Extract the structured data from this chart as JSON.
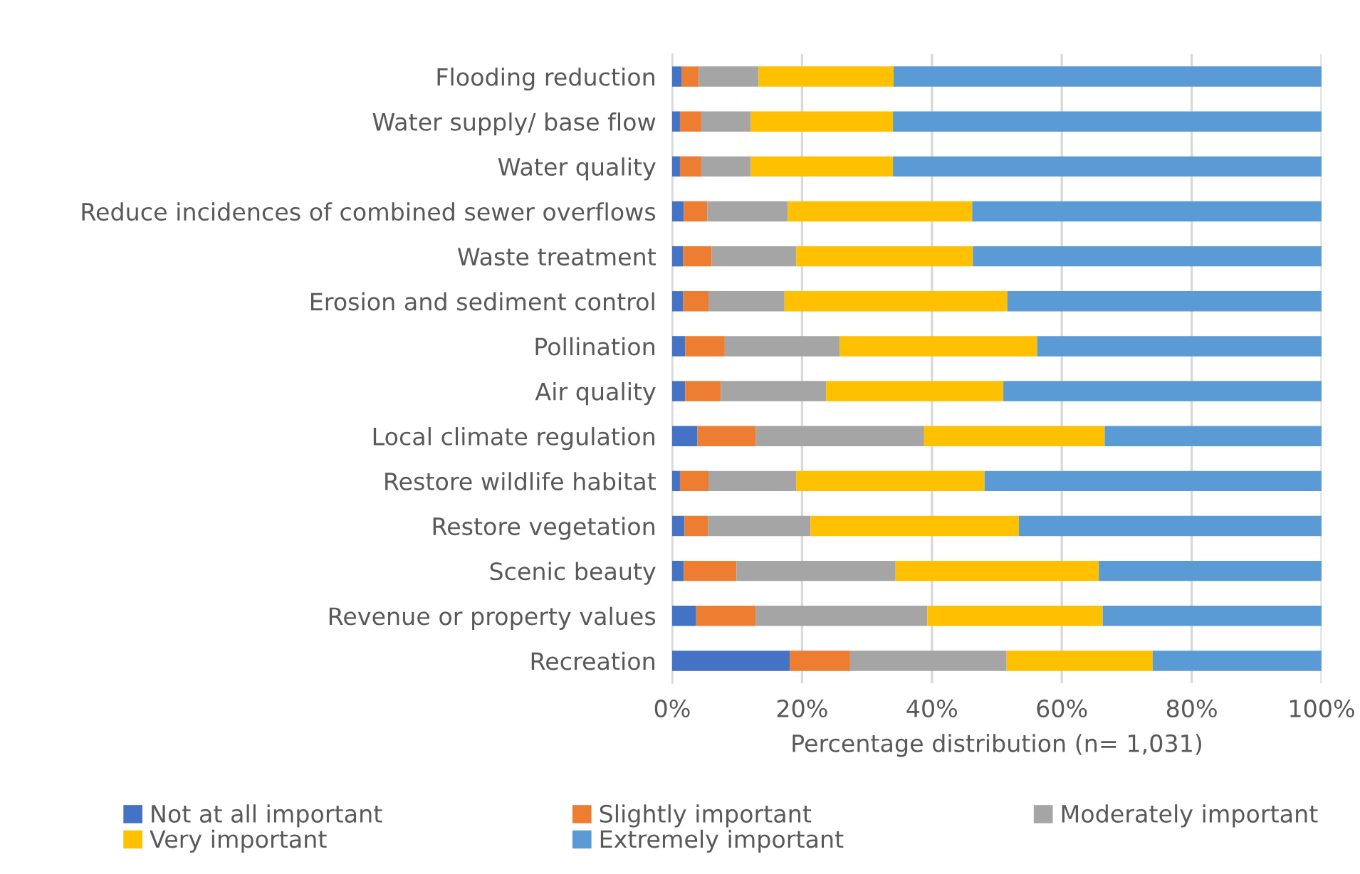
{
  "chart_data": {
    "type": "bar",
    "orientation": "horizontal",
    "stacked": true,
    "categories": [
      "Flooding reduction",
      "Water supply/ base flow",
      "Water quality",
      "Reduce incidences of combined sewer overflows",
      "Waste treatment",
      "Erosion and sediment control",
      "Pollination",
      "Air quality",
      "Local climate regulation",
      "Restore wildlife habitat",
      "Restore vegetation",
      "Scenic beauty",
      "Revenue or property values",
      "Recreation"
    ],
    "series": [
      {
        "name": "Not at all important",
        "color": "#4472c4",
        "values": [
          1.5,
          1.2,
          1.2,
          1.8,
          1.7,
          1.7,
          2.0,
          2.0,
          3.9,
          1.2,
          1.9,
          1.8,
          3.7,
          18.1
        ]
      },
      {
        "name": "Slightly important",
        "color": "#ed7d31",
        "values": [
          2.6,
          3.3,
          3.3,
          3.6,
          4.4,
          3.9,
          6.1,
          5.5,
          9.0,
          4.4,
          3.6,
          8.1,
          9.2,
          9.3
        ]
      },
      {
        "name": "Moderately important",
        "color": "#a5a5a5",
        "values": [
          9.2,
          7.6,
          7.6,
          12.4,
          13.0,
          11.7,
          17.7,
          16.2,
          25.9,
          13.5,
          15.8,
          24.5,
          26.4,
          24.1
        ]
      },
      {
        "name": "Very important",
        "color": "#ffc000",
        "values": [
          20.8,
          21.9,
          21.9,
          28.4,
          27.2,
          34.3,
          30.4,
          27.3,
          27.8,
          29.0,
          32.1,
          31.3,
          27.0,
          22.5
        ]
      },
      {
        "name": "Extremely important",
        "color": "#5b9bd5",
        "values": [
          65.9,
          66.0,
          66.0,
          53.8,
          53.7,
          48.4,
          43.8,
          49.0,
          33.4,
          51.9,
          46.6,
          34.3,
          33.7,
          26.0
        ]
      }
    ],
    "xlabel": "Percentage distribution (n= 1,031)",
    "xlim": [
      0,
      100
    ],
    "xticks": [
      {
        "value": 0,
        "label": "0%"
      },
      {
        "value": 20,
        "label": "20%"
      },
      {
        "value": 40,
        "label": "40%"
      },
      {
        "value": 60,
        "label": "60%"
      },
      {
        "value": 80,
        "label": "80%"
      },
      {
        "value": 100,
        "label": "100%"
      }
    ],
    "grid": "x",
    "legend": "bottom"
  }
}
